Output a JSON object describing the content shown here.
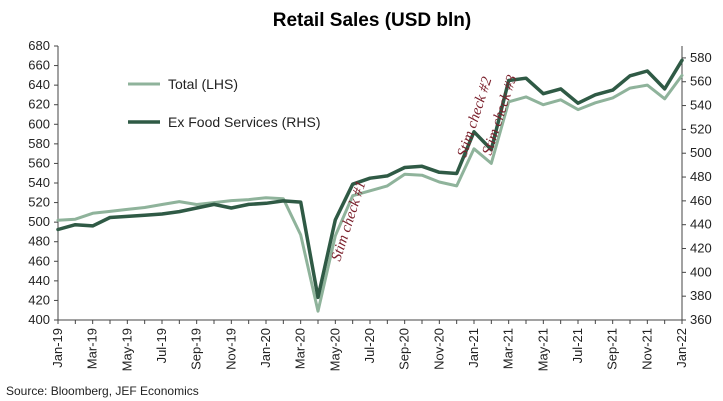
{
  "chart_data": {
    "type": "line",
    "title": "Retail Sales (USD bln)",
    "source": "Source: Bloomberg, JEF Economics",
    "x": [
      "Jan-19",
      "Feb-19",
      "Mar-19",
      "Apr-19",
      "May-19",
      "Jun-19",
      "Jul-19",
      "Aug-19",
      "Sep-19",
      "Oct-19",
      "Nov-19",
      "Dec-19",
      "Jan-20",
      "Feb-20",
      "Mar-20",
      "Apr-20",
      "May-20",
      "Jun-20",
      "Jul-20",
      "Aug-20",
      "Sep-20",
      "Oct-20",
      "Nov-20",
      "Dec-20",
      "Jan-21",
      "Feb-21",
      "Mar-21",
      "Apr-21",
      "May-21",
      "Jun-21",
      "Jul-21",
      "Aug-21",
      "Sep-21",
      "Oct-21",
      "Nov-21",
      "Dec-21",
      "Jan-22"
    ],
    "x_tick_labels": [
      "Jan-19",
      "Mar-19",
      "May-19",
      "Jul-19",
      "Sep-19",
      "Nov-19",
      "Jan-20",
      "Mar-20",
      "May-20",
      "Jul-20",
      "Sep-20",
      "Nov-20",
      "Jan-21",
      "Mar-21",
      "May-21",
      "Jul-21",
      "Sep-21",
      "Nov-21",
      "Jan-22"
    ],
    "y_left": {
      "ylim": [
        400,
        680
      ],
      "ticks": [
        400,
        420,
        440,
        460,
        480,
        500,
        520,
        540,
        560,
        580,
        600,
        620,
        640,
        660,
        680
      ]
    },
    "y_right": {
      "ylim": [
        360,
        590
      ],
      "ticks": [
        360,
        380,
        400,
        420,
        440,
        460,
        480,
        500,
        520,
        540,
        560,
        580
      ]
    },
    "series": [
      {
        "name": "Total (LHS)",
        "axis": "left",
        "color": "#8fb39b",
        "values": [
          502,
          503,
          509,
          511,
          513,
          515,
          518,
          521,
          518,
          520,
          522,
          523,
          525,
          524,
          487,
          409,
          486,
          527,
          532,
          537,
          549,
          548,
          541,
          537,
          575,
          560,
          623,
          628,
          620,
          625,
          615,
          622,
          627,
          637,
          640,
          626,
          650
        ]
      },
      {
        "name": "Ex Food Services (RHS)",
        "axis": "right",
        "color": "#2f5a45",
        "values": [
          436,
          440,
          439,
          446,
          447,
          448,
          449,
          451,
          454,
          457,
          454,
          457,
          458,
          460,
          459,
          379,
          444,
          474,
          479,
          481,
          488,
          489,
          484,
          483,
          518,
          503,
          561,
          563,
          550,
          554,
          542,
          549,
          553,
          565,
          569,
          554,
          578
        ]
      }
    ],
    "annotations": [
      {
        "text": "Stim check #1",
        "x": "May-20"
      },
      {
        "text": "Stim check #2",
        "x": "Jan-21"
      },
      {
        "text": "Stim check #3",
        "x": "Mar-21"
      }
    ],
    "legend": "upper-left, inside plot",
    "grid": false
  }
}
